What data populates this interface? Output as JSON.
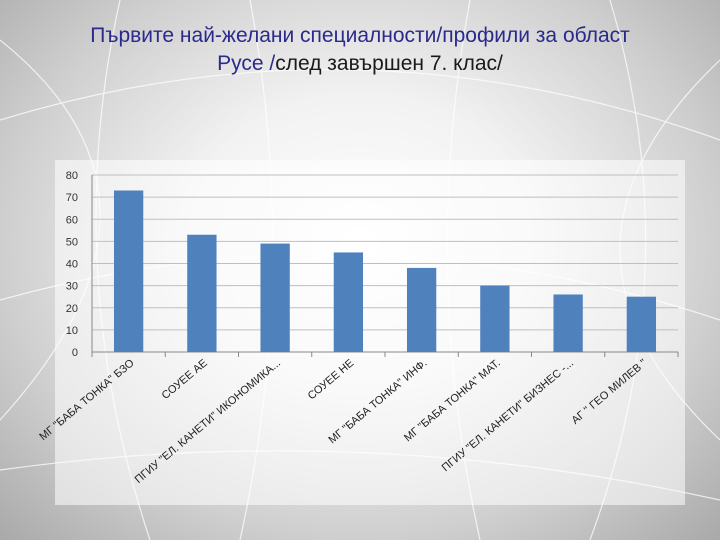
{
  "slide": {
    "title_line1": "Първите най-желани специалности/профили за област",
    "title_line2_accent": "Русе /",
    "title_line2_rest": "след завършен 7. клас/"
  },
  "colors": {
    "bar": "#4F81BD",
    "grid": "#bfbfbf",
    "axis": "#888888"
  },
  "chart_data": {
    "type": "bar",
    "categories": [
      "МГ \"БАБА ТОНКА\" БЗО",
      "СОУЕЕ АЕ",
      "ПГИУ \"ЕЛ. КАНЕТИ\" ИКОНОМИКА...",
      "СОУЕЕ НЕ",
      "МГ \"БАБА ТОНКА\" ИНФ.",
      "МГ \"БАБА ТОНКА\" МАТ.",
      "ПГИУ \"ЕЛ. КАНЕТИ\" БИЗНЕС -...",
      "АГ \" ГЕО МИЛЕВ \""
    ],
    "values": [
      73,
      53,
      49,
      45,
      38,
      30,
      26,
      25
    ],
    "ylim": [
      0,
      80
    ],
    "yticks": [
      0,
      10,
      20,
      30,
      40,
      50,
      60,
      70,
      80
    ],
    "grid": true
  }
}
